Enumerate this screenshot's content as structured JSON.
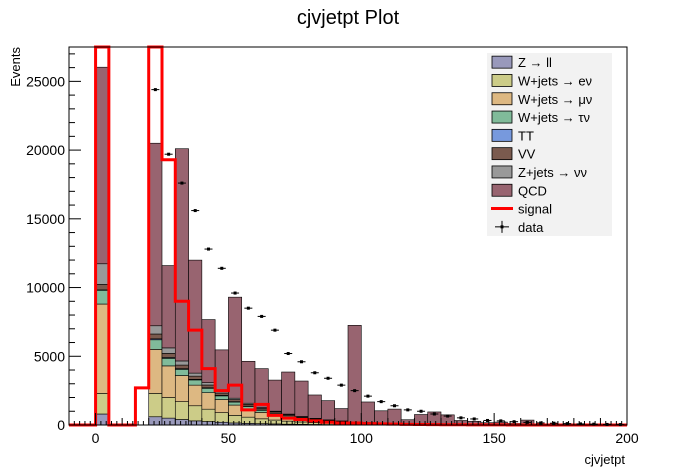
{
  "chart_data": {
    "type": "bar",
    "title": "cjvjetpt Plot",
    "xlabel": "cjvjetpt",
    "ylabel": "Events",
    "xlim": [
      -10,
      200
    ],
    "ylim": [
      0,
      27500
    ],
    "x_ticks": [
      0,
      50,
      100,
      150,
      200
    ],
    "y_ticks": [
      0,
      5000,
      10000,
      15000,
      20000,
      25000
    ],
    "grid": false,
    "legend_position": "top-right",
    "bin_width": 5,
    "bins_left": [
      -10,
      -5,
      0,
      5,
      10,
      15,
      20,
      25,
      30,
      35,
      40,
      45,
      50,
      55,
      60,
      65,
      70,
      75,
      80,
      85,
      90,
      95,
      100,
      105,
      110,
      115,
      120,
      125,
      130,
      135,
      140,
      145,
      150,
      155,
      160,
      165,
      170,
      175,
      180,
      185,
      190,
      195
    ],
    "stack": [
      {
        "name": "Z → ll",
        "color": "#9999bb",
        "values": [
          0,
          0,
          800,
          0,
          0,
          0,
          600,
          500,
          400,
          300,
          250,
          200,
          150,
          120,
          100,
          80,
          60,
          50,
          40,
          30,
          25,
          20,
          15,
          12,
          10,
          8,
          6,
          5,
          4,
          3,
          2,
          2,
          1,
          1,
          1,
          1,
          0,
          0,
          0,
          0,
          0,
          0
        ]
      },
      {
        "name": "W+jets → eν",
        "color": "#cccc88",
        "values": [
          0,
          0,
          1500,
          0,
          0,
          0,
          1700,
          1500,
          1300,
          1100,
          900,
          700,
          550,
          450,
          350,
          280,
          220,
          170,
          130,
          100,
          80,
          60,
          45,
          35,
          28,
          22,
          17,
          13,
          10,
          8,
          6,
          5,
          4,
          3,
          2,
          2,
          1,
          1,
          1,
          0,
          0,
          0
        ]
      },
      {
        "name": "W+jets → μν",
        "color": "#ddb882",
        "values": [
          0,
          0,
          6500,
          0,
          0,
          0,
          3200,
          2300,
          1900,
          1500,
          1200,
          950,
          750,
          600,
          470,
          370,
          290,
          220,
          170,
          130,
          100,
          80,
          60,
          45,
          35,
          27,
          20,
          15,
          11,
          8,
          6,
          5,
          4,
          3,
          2,
          2,
          1,
          1,
          1,
          0,
          0,
          0
        ]
      },
      {
        "name": "W+jets → τν",
        "color": "#80bb9a",
        "values": [
          0,
          0,
          1000,
          0,
          0,
          0,
          700,
          550,
          450,
          380,
          320,
          270,
          220,
          180,
          150,
          120,
          95,
          75,
          60,
          45,
          35,
          27,
          20,
          15,
          12,
          9,
          7,
          5,
          4,
          3,
          2,
          2,
          1,
          1,
          1,
          0,
          0,
          0,
          0,
          0,
          0,
          0
        ]
      },
      {
        "name": "TT",
        "color": "#7799dd",
        "values": [
          0,
          0,
          30,
          0,
          0,
          0,
          70,
          60,
          50,
          45,
          40,
          35,
          30,
          25,
          20,
          17,
          14,
          11,
          9,
          7,
          6,
          5,
          4,
          3,
          2,
          2,
          1,
          1,
          1,
          0,
          0,
          0,
          0,
          0,
          0,
          0,
          0,
          0,
          0,
          0,
          0,
          0
        ]
      },
      {
        "name": "VV",
        "color": "#7a5a4e",
        "values": [
          0,
          0,
          400,
          0,
          0,
          0,
          350,
          300,
          260,
          230,
          200,
          170,
          150,
          130,
          110,
          95,
          80,
          65,
          55,
          45,
          37,
          30,
          24,
          19,
          15,
          12,
          10,
          8,
          6,
          5,
          4,
          3,
          2,
          2,
          1,
          1,
          1,
          0,
          0,
          0,
          0,
          0
        ]
      },
      {
        "name": "Z+jets → νν",
        "color": "#999999",
        "values": [
          0,
          0,
          1500,
          0,
          0,
          0,
          600,
          400,
          300,
          220,
          170,
          130,
          100,
          80,
          60,
          45,
          35,
          27,
          20,
          15,
          12,
          9,
          7,
          5,
          4,
          3,
          2,
          2,
          1,
          1,
          1,
          0,
          0,
          0,
          0,
          0,
          0,
          0,
          0,
          0,
          0,
          0
        ]
      },
      {
        "name": "QCD",
        "color": "#986470",
        "values": [
          0,
          0,
          14300,
          0,
          0,
          0,
          13280,
          5990,
          15440,
          8220,
          4590,
          3010,
          7350,
          3050,
          2840,
          2260,
          3060,
          2580,
          1700,
          1400,
          900,
          7020,
          1500,
          900,
          1050,
          300,
          700,
          900,
          700,
          300,
          250,
          150,
          200,
          100,
          350,
          50,
          50,
          40,
          30,
          20,
          10,
          10
        ]
      }
    ],
    "signal": {
      "name": "signal",
      "color": "#ff0000",
      "values": [
        0,
        0,
        27500,
        0,
        0,
        2700,
        27500,
        19300,
        9000,
        6900,
        4100,
        2500,
        2900,
        1100,
        1500,
        700,
        500,
        400,
        300,
        200,
        150,
        150,
        100,
        80,
        60,
        50,
        40,
        30,
        20,
        15,
        10,
        8,
        5,
        4,
        3,
        2,
        1,
        1,
        0,
        0,
        0,
        0
      ]
    },
    "data": {
      "name": "data",
      "x": [
        22.5,
        27.5,
        32.5,
        37.5,
        42.5,
        47.5,
        52.5,
        57.5,
        62.5,
        67.5,
        72.5,
        77.5,
        82.5,
        87.5,
        92.5,
        97.5,
        102.5,
        107.5,
        112.5,
        117.5,
        122.5,
        127.5,
        132.5,
        137.5,
        142.5,
        147.5,
        152.5,
        157.5,
        162.5,
        167.5,
        172.5,
        177.5,
        182.5,
        187.5,
        192.5,
        197.5
      ],
      "y": [
        24400,
        19700,
        17600,
        15600,
        12800,
        11400,
        9600,
        8500,
        7900,
        6900,
        5200,
        4600,
        3800,
        3400,
        2900,
        2500,
        2100,
        1700,
        1400,
        1100,
        1000,
        800,
        650,
        520,
        440,
        330,
        300,
        240,
        190,
        150,
        130,
        100,
        80,
        60,
        40,
        30
      ]
    }
  }
}
